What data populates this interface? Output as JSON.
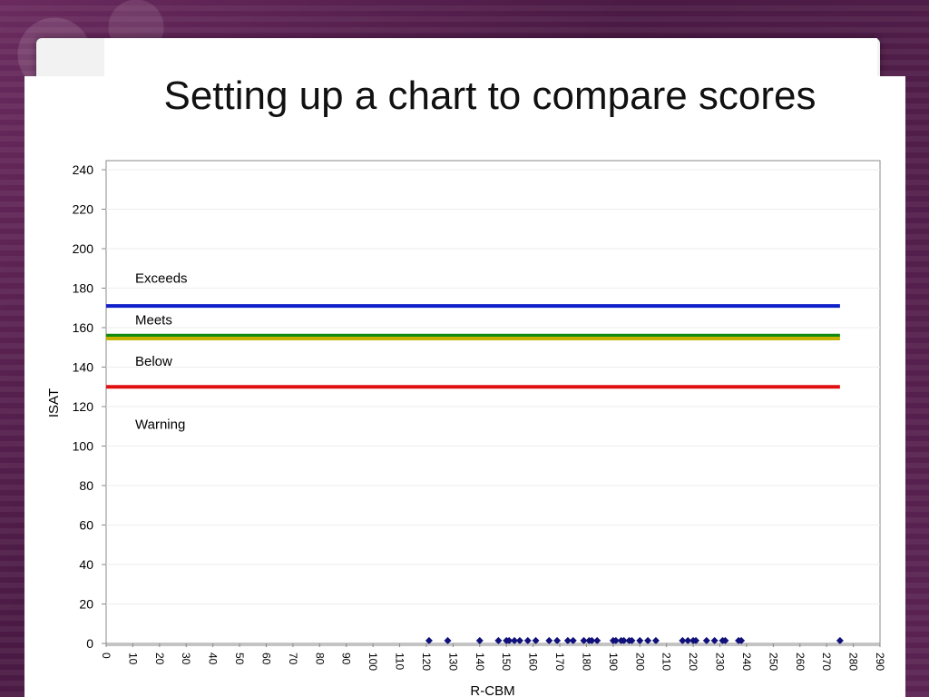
{
  "slide": {
    "title": "Setting up a chart to compare scores"
  },
  "chart_data": {
    "type": "scatter",
    "title": "",
    "xlabel": "R-CBM",
    "ylabel": "ISAT",
    "xlim": [
      0,
      290
    ],
    "ylim": [
      0,
      240
    ],
    "x_ticks": [
      0,
      10,
      20,
      30,
      40,
      50,
      60,
      70,
      80,
      90,
      100,
      110,
      120,
      130,
      140,
      150,
      160,
      170,
      180,
      190,
      200,
      210,
      220,
      230,
      240,
      250,
      260,
      270,
      280,
      290
    ],
    "y_ticks": [
      0,
      20,
      40,
      60,
      80,
      100,
      120,
      140,
      160,
      180,
      200,
      220,
      240
    ],
    "grid": "horizontal",
    "legend": "none",
    "reference_lines": [
      {
        "y": 171,
        "x_range": [
          0,
          275
        ],
        "color": "#1020c8"
      },
      {
        "y": 156,
        "x_range": [
          0,
          275
        ],
        "color": "#108a10"
      },
      {
        "y": 154.5,
        "x_range": [
          0,
          275
        ],
        "color": "#c8b000"
      },
      {
        "y": 130,
        "x_range": [
          0,
          275
        ],
        "color": "#e01010"
      }
    ],
    "band_labels": [
      {
        "text": "Exceeds",
        "y": 185
      },
      {
        "text": "Meets",
        "y": 164
      },
      {
        "text": "Below",
        "y": 143
      },
      {
        "text": "Warning",
        "y": 111
      }
    ],
    "series": [
      {
        "color": "#10107a",
        "x": [
          121,
          128,
          140,
          147,
          150,
          151,
          153,
          155,
          158,
          161,
          166,
          169,
          173,
          175,
          179,
          181,
          182,
          184,
          190,
          191,
          193,
          194,
          196,
          197,
          200,
          203,
          206,
          216,
          218,
          220,
          221,
          225,
          228,
          231,
          232,
          237,
          238,
          275
        ],
        "y": [
          1,
          1,
          1,
          1,
          1,
          1,
          1,
          1,
          1,
          1,
          1,
          1,
          1,
          1,
          1,
          1,
          1,
          1,
          1,
          1,
          1,
          1,
          1,
          1,
          1,
          1,
          1,
          1,
          1,
          1,
          1,
          1,
          1,
          1,
          1,
          1,
          1,
          1
        ]
      }
    ]
  }
}
